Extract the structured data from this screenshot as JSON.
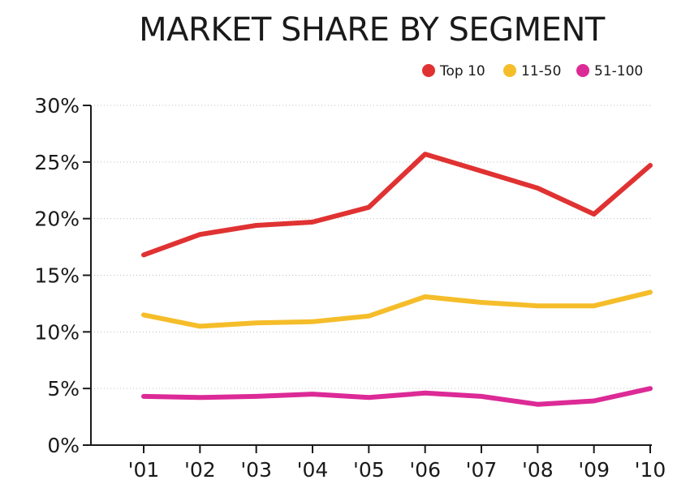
{
  "chart_data": {
    "type": "line",
    "title": "MARKET SHARE BY SEGMENT",
    "xlabel": "",
    "ylabel": "",
    "x": [
      "'01",
      "'02",
      "'03",
      "'04",
      "'05",
      "'06",
      "'07",
      "'08",
      "'09",
      "'10"
    ],
    "y_ticks": [
      "0%",
      "5%",
      "10%",
      "15%",
      "20%",
      "25%",
      "30%"
    ],
    "ylim": [
      0,
      30
    ],
    "grid": true,
    "legend_position": "top-right",
    "series": [
      {
        "name": "Top 10",
        "color": "#e03232",
        "values": [
          16.8,
          18.6,
          19.4,
          19.7,
          21.0,
          25.7,
          24.2,
          22.7,
          20.4,
          24.7
        ]
      },
      {
        "name": "11-50",
        "color": "#f5bd2a",
        "values": [
          11.5,
          10.5,
          10.8,
          10.9,
          11.4,
          13.1,
          12.6,
          12.3,
          12.3,
          13.5
        ]
      },
      {
        "name": "51-100",
        "color": "#dc2a96",
        "values": [
          4.3,
          4.2,
          4.3,
          4.5,
          4.2,
          4.6,
          4.3,
          3.6,
          3.9,
          5.0
        ]
      }
    ]
  }
}
